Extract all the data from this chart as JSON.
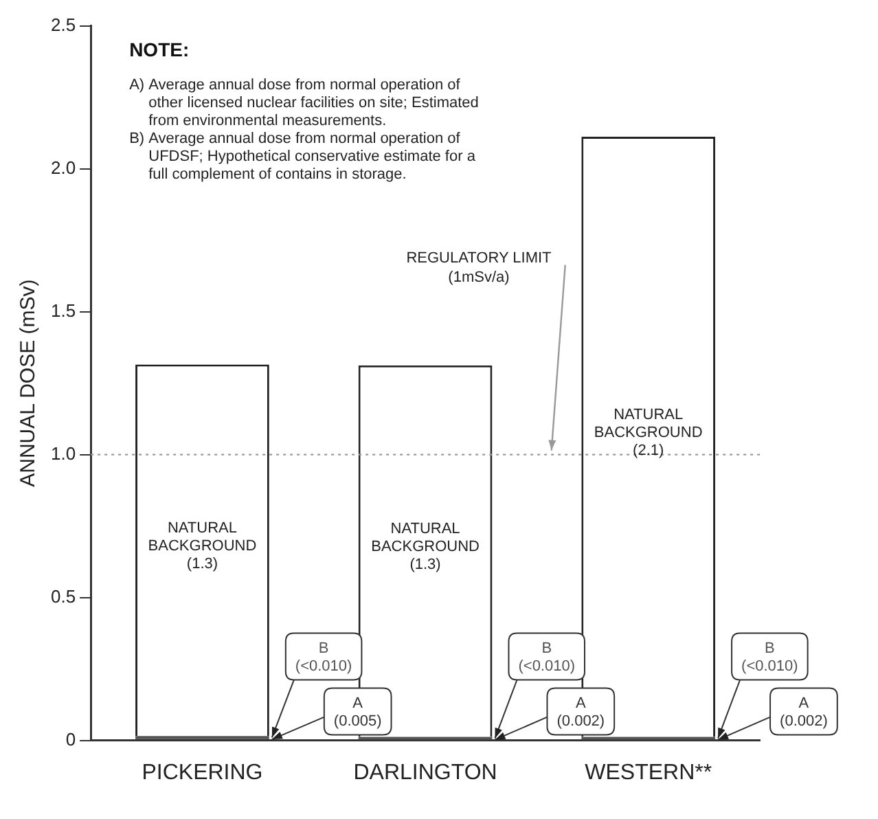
{
  "chart_data": {
    "type": "bar",
    "stacked": true,
    "ylabel": "ANNUAL DOSE (mSv)",
    "categories": [
      "PICKERING",
      "DARLINGTON",
      "WESTERN**"
    ],
    "series": [
      {
        "name": "A",
        "color": "#333333",
        "values": [
          0.005,
          0.002,
          0.002
        ],
        "value_labels": [
          "(0.005)",
          "(0.002)",
          "(0.002)"
        ]
      },
      {
        "name": "B",
        "color": "#555555",
        "values": [
          0.01,
          0.01,
          0.01
        ],
        "value_labels": [
          "(<0.010)",
          "(<0.010)",
          "(<0.010)"
        ]
      },
      {
        "name": "NATURAL BACKGROUND",
        "color": "#ffffff",
        "values": [
          1.3,
          1.3,
          2.1
        ],
        "value_labels": [
          "(1.3)",
          "(1.3)",
          "(2.1)"
        ]
      }
    ],
    "ylim": [
      0,
      2.5
    ],
    "yticks": [
      0,
      0.5,
      {
        "value": 1,
        "label": "1.0"
      },
      1.5,
      {
        "value": 2,
        "label": "2.0"
      },
      2.5
    ],
    "grid": false,
    "legend": false,
    "ref_lines": [
      {
        "axis": "y",
        "value": 1,
        "label": "REGULATORY LIMIT (1mSv/a)",
        "color": "#999999",
        "line_style": "dotted"
      }
    ],
    "annotations": [
      "NOTE:",
      "A) Average annual dose from normal operation of other licensed nuclear facilities on site; Estimated from environmental measurements.",
      "B) Average annual dose from normal operation of UFDSF; Hypothetical conservative estimate for a full complement of contains in storage."
    ]
  }
}
